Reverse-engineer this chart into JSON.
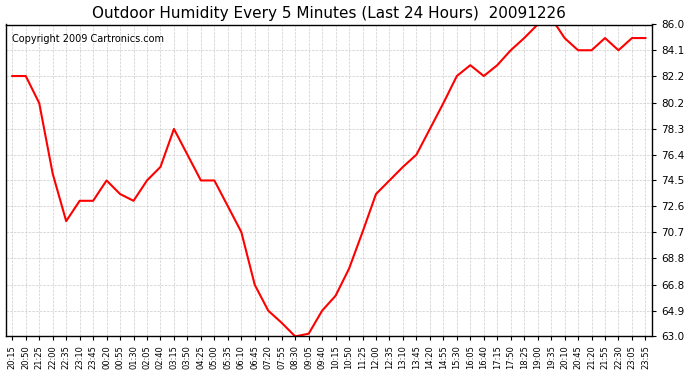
{
  "title": "Outdoor Humidity Every 5 Minutes (Last 24 Hours)  20091226",
  "copyright": "Copyright 2009 Cartronics.com",
  "line_color": "#ff0000",
  "bg_color": "#ffffff",
  "grid_color": "#cccccc",
  "ylim": [
    63.0,
    86.0
  ],
  "yticks": [
    63.0,
    64.9,
    66.8,
    68.8,
    70.7,
    72.6,
    74.5,
    76.4,
    78.3,
    80.2,
    82.2,
    84.1,
    86.0
  ],
  "x_labels": [
    "20:15",
    "20:50",
    "21:25",
    "22:00",
    "22:35",
    "23:10",
    "23:45",
    "00:20",
    "00:55",
    "01:30",
    "02:05",
    "02:40",
    "03:15",
    "03:50",
    "04:25",
    "05:00",
    "05:35",
    "06:10",
    "06:45",
    "07:20",
    "07:55",
    "08:30",
    "09:05",
    "09:40",
    "10:15",
    "10:50",
    "11:25",
    "12:00",
    "12:35",
    "13:10",
    "13:45",
    "14:20",
    "14:55",
    "15:30",
    "16:05",
    "16:40",
    "17:15",
    "17:50",
    "18:25",
    "19:00",
    "19:35",
    "20:10",
    "20:45",
    "21:20",
    "21:55",
    "22:30",
    "23:05",
    "23:55"
  ],
  "humidity_values": [
    82.2,
    82.2,
    80.2,
    75.0,
    71.5,
    73.0,
    73.0,
    74.5,
    73.5,
    73.0,
    74.5,
    75.5,
    78.3,
    76.4,
    74.5,
    74.5,
    72.6,
    70.7,
    66.8,
    64.9,
    64.0,
    63.0,
    63.2,
    64.9,
    66.0,
    68.0,
    70.7,
    73.5,
    74.5,
    75.5,
    76.4,
    78.3,
    80.2,
    82.2,
    83.0,
    82.2,
    83.0,
    84.1,
    85.0,
    86.0,
    86.5,
    85.0,
    84.1,
    84.1,
    85.0,
    84.1,
    85.0,
    85.0
  ]
}
